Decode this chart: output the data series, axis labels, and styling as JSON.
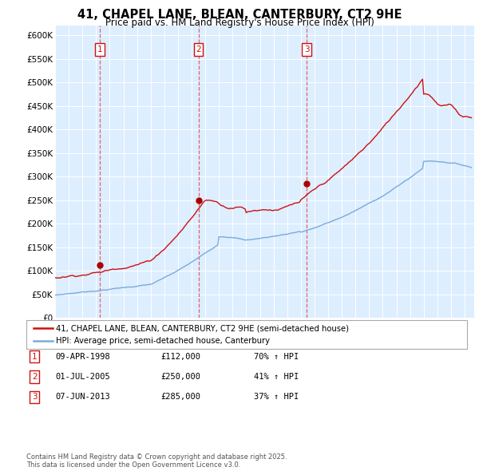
{
  "title_line1": "41, CHAPEL LANE, BLEAN, CANTERBURY, CT2 9HE",
  "title_line2": "Price paid vs. HM Land Registry's House Price Index (HPI)",
  "ylim": [
    0,
    620000
  ],
  "yticks": [
    0,
    50000,
    100000,
    150000,
    200000,
    250000,
    300000,
    350000,
    400000,
    450000,
    500000,
    550000,
    600000
  ],
  "ytick_labels": [
    "£0",
    "£50K",
    "£100K",
    "£150K",
    "£200K",
    "£250K",
    "£300K",
    "£350K",
    "£400K",
    "£450K",
    "£500K",
    "£550K",
    "£600K"
  ],
  "xlim_start": 1995.0,
  "xlim_end": 2025.7,
  "hpi_color": "#7aaadd",
  "price_color": "#cc1111",
  "dot_color": "#aa0000",
  "vline_color": "#dd4444",
  "legend_label_price": "41, CHAPEL LANE, BLEAN, CANTERBURY, CT2 9HE (semi-detached house)",
  "legend_label_hpi": "HPI: Average price, semi-detached house, Canterbury",
  "sale_dates": [
    1998.27,
    2005.5,
    2013.44
  ],
  "sale_prices": [
    112000,
    250000,
    285000
  ],
  "sale_labels": [
    "1",
    "2",
    "3"
  ],
  "sale_annotations": [
    [
      "09-APR-1998",
      "£112,000",
      "70% ↑ HPI"
    ],
    [
      "01-JUL-2005",
      "£250,000",
      "41% ↑ HPI"
    ],
    [
      "07-JUN-2013",
      "£285,000",
      "37% ↑ HPI"
    ]
  ],
  "footer_text": "Contains HM Land Registry data © Crown copyright and database right 2025.\nThis data is licensed under the Open Government Licence v3.0.",
  "plot_bg_color": "#ddeeff"
}
